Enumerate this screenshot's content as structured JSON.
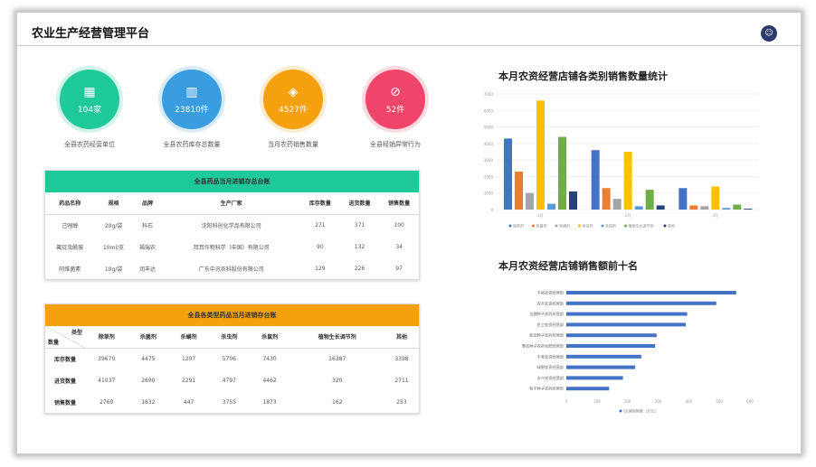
{
  "header": {
    "title": "农业生产经营管理平台",
    "avatar": "☺"
  },
  "stats": [
    {
      "value": "104家",
      "label": "全县农药经营单位",
      "color": "#1ec99a",
      "icon": "grid-icon",
      "glyph": "▦"
    },
    {
      "value": "23810件",
      "label": "全县农药库存总数量",
      "color": "#3a9de0",
      "icon": "bar-chart-icon",
      "glyph": "▥"
    },
    {
      "value": "4527件",
      "label": "当月农药销售数量",
      "color": "#f5a00f",
      "icon": "package-icon",
      "glyph": "◈"
    },
    {
      "value": "52件",
      "label": "全县经销异常行为",
      "color": "#f0456a",
      "icon": "forbidden-icon",
      "glyph": "⊘"
    }
  ],
  "table1": {
    "title": "全县药品当月进销存总台账",
    "color": "#1ec99a",
    "columns": [
      "药品名称",
      "规格",
      "品牌",
      "生产厂家",
      "库存数量",
      "进货数量",
      "销售数量"
    ],
    "rows": [
      [
        "己唑醇",
        "20g/袋",
        "科石",
        "沈阳科创化学品有限公司",
        "271",
        "371",
        "100"
      ],
      [
        "氟啶虫酰胺",
        "10ml/支",
        "福瑞农",
        "拜耳作物科学（中国）有限公司",
        "90",
        "132",
        "34"
      ],
      [
        "阿维菌素",
        "10g/袋",
        "润丰达",
        "广东中讯农科股份有限公司",
        "129",
        "226",
        "97"
      ]
    ]
  },
  "table2": {
    "title": "全县各类型药品当月进销存台账",
    "color": "#f5a00f",
    "corner_top": "类型",
    "corner_bottom": "数量",
    "columns": [
      "除草剂",
      "杀菌剂",
      "杀螨剂",
      "杀虫剂",
      "杀鼠剂",
      "植物生长调节剂",
      "其他"
    ],
    "rows": [
      {
        "label": "库存数量",
        "values": [
          "39670",
          "4475",
          "1207",
          "5706",
          "7430",
          "16387",
          "3398"
        ]
      },
      {
        "label": "进货数量",
        "values": [
          "41037",
          "2690",
          "2291",
          "4797",
          "4462",
          "320",
          "2711"
        ]
      },
      {
        "label": "销售数量",
        "values": [
          "2760",
          "1832",
          "447",
          "3755",
          "1873",
          "162",
          "253"
        ]
      }
    ]
  },
  "chart_data": [
    {
      "type": "bar",
      "title": "本月农资经营店铺各类别销售数量统计",
      "categories": [
        "1月",
        "2月",
        "3月"
      ],
      "ylim": [
        0,
        7000
      ],
      "yticks": [
        0,
        1000,
        2000,
        3000,
        4000,
        5000,
        6000,
        7000
      ],
      "series": [
        {
          "name": "除草剂",
          "color": "#4472c4",
          "values": [
            4300,
            3600,
            1300
          ]
        },
        {
          "name": "杀菌剂",
          "color": "#ed7d31",
          "values": [
            2300,
            1300,
            250
          ]
        },
        {
          "name": "杀螨剂",
          "color": "#a5a5a5",
          "values": [
            1000,
            650,
            200
          ]
        },
        {
          "name": "杀虫剂",
          "color": "#ffc000",
          "values": [
            6600,
            3500,
            1400
          ]
        },
        {
          "name": "杀鼠剂",
          "color": "#5b9bd5",
          "values": [
            350,
            200,
            100
          ]
        },
        {
          "name": "植物生长调节剂",
          "color": "#70ad47",
          "values": [
            4400,
            1200,
            300
          ]
        },
        {
          "name": "其他",
          "color": "#264478",
          "values": [
            1100,
            250,
            50
          ]
        }
      ],
      "legend": "bottom",
      "grid": true
    },
    {
      "type": "bar",
      "orientation": "horizontal",
      "title": "本月农资经营店铺销售额前十名",
      "xlim": [
        0,
        600
      ],
      "xticks": [
        0,
        100,
        200,
        300,
        400,
        500,
        600
      ],
      "categories": [
        "丰裕农资经营部",
        "农丰农资经营部",
        "金穗种子农药经营部",
        "民工农资经营部",
        "新田种子农药经营部",
        "惠农种子农药化肥经营部",
        "丰收农资经营部",
        "绿野农资经营部",
        "永兴农资经营部",
        "和平种子农药经营部"
      ],
      "series": [
        {
          "name": "店铺销售额（万元）",
          "color": "#4472c4",
          "values": [
            555,
            490,
            395,
            390,
            295,
            290,
            245,
            225,
            185,
            140
          ]
        }
      ],
      "legend": "bottom",
      "grid": false
    }
  ]
}
